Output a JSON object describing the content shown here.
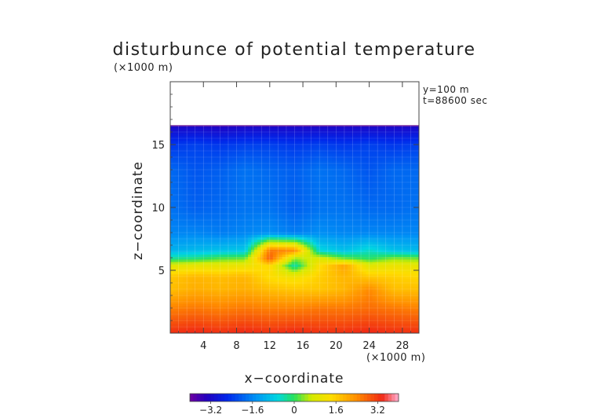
{
  "chart_data": {
    "type": "heatmap",
    "title": "disturbunce of potential temperature",
    "z_unit_label": "(×1000 m)",
    "x_unit_label": "(×1000 m)",
    "xlabel": "x−coordinate",
    "ylabel": "z−coordinate",
    "annotations": [
      "y=100 m",
      "t=88600 sec"
    ],
    "xlim": [
      0,
      30
    ],
    "ylim": [
      0,
      20
    ],
    "x_ticks": [
      4,
      8,
      12,
      16,
      20,
      24,
      28
    ],
    "y_ticks": [
      5,
      10,
      15
    ],
    "colorbar": {
      "ticks": [
        -3.2,
        -1.6,
        0,
        1.6,
        3.2
      ],
      "tick_labels": [
        "−3.2",
        "−1.6",
        "0",
        "1.6",
        "3.2"
      ],
      "range": [
        -4,
        4
      ]
    },
    "field": {
      "x_knots": [
        0,
        3,
        6,
        9,
        12,
        15,
        18,
        21,
        24,
        27,
        30
      ],
      "z_knots": [
        16.5,
        15,
        13,
        10,
        8,
        6.6,
        6,
        5.4,
        4.5,
        3.5,
        2,
        0
      ],
      "values": [
        [
          -3.2,
          -3.2,
          -3.3,
          -3.2,
          -3.2,
          -3.2,
          -3.2,
          -3.2,
          -3.2,
          -3.2,
          -3.2
        ],
        [
          -2.4,
          -2.3,
          -2.4,
          -2.3,
          -2.3,
          -2.4,
          -2.3,
          -2.4,
          -2.3,
          -2.4,
          -2.3
        ],
        [
          -1.9,
          -2.1,
          -2.0,
          -1.8,
          -1.9,
          -2.0,
          -1.8,
          -1.9,
          -2.1,
          -1.9,
          -1.9
        ],
        [
          -1.8,
          -2.0,
          -1.9,
          -1.8,
          -1.8,
          -2.0,
          -1.8,
          -1.8,
          -1.9,
          -1.9,
          -1.8
        ],
        [
          -1.6,
          -1.6,
          -1.7,
          -1.6,
          -1.5,
          -1.7,
          -1.5,
          -1.6,
          -1.6,
          -1.6,
          -1.6
        ],
        [
          -1.1,
          -1.0,
          -0.9,
          -0.8,
          2.6,
          2.4,
          -0.6,
          -0.9,
          -0.5,
          -0.9,
          -1.0
        ],
        [
          -0.3,
          -0.2,
          0.1,
          0.2,
          2.9,
          0.5,
          0.8,
          0.2,
          -0.1,
          0.3,
          0.2
        ],
        [
          0.9,
          1.0,
          1.0,
          1.1,
          1.5,
          -0.4,
          1.4,
          2.1,
          0.9,
          1.1,
          1.0
        ],
        [
          1.7,
          1.9,
          1.8,
          1.9,
          1.4,
          1.2,
          1.6,
          1.9,
          1.7,
          1.6,
          1.5
        ],
        [
          1.8,
          2.0,
          1.9,
          2.0,
          1.8,
          1.7,
          1.7,
          1.9,
          2.4,
          1.8,
          1.8
        ],
        [
          2.5,
          2.6,
          2.5,
          2.6,
          2.5,
          2.5,
          2.6,
          2.6,
          2.7,
          2.6,
          2.5
        ],
        [
          3.3,
          3.4,
          3.3,
          3.4,
          3.3,
          3.4,
          3.3,
          3.3,
          3.4,
          3.3,
          3.3
        ]
      ]
    }
  }
}
